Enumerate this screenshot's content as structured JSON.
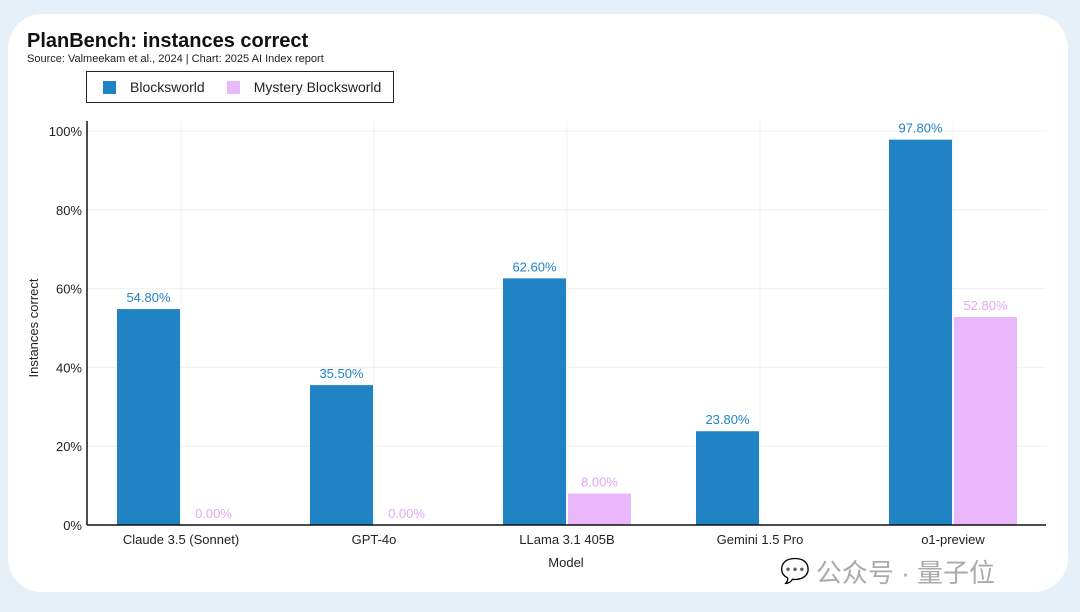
{
  "chart_data": {
    "type": "bar",
    "title": "PlanBench: instances correct",
    "subtitle": "Source: Valmeekam et al., 2024 | Chart: 2025 AI Index report",
    "xlabel": "Model",
    "ylabel": "Instances correct",
    "ylim": [
      0,
      100
    ],
    "yticks": [
      "0%",
      "20%",
      "40%",
      "60%",
      "80%",
      "100%"
    ],
    "categories": [
      "Claude 3.5 (Sonnet)",
      "GPT-4o",
      "LLama 3.1 405B",
      "Gemini 1.5 Pro",
      "o1-preview"
    ],
    "series": [
      {
        "name": "Blocksworld",
        "color": "#1f83c4",
        "values": [
          54.8,
          35.5,
          62.6,
          23.8,
          97.8
        ],
        "labels": [
          "54.80%",
          "35.50%",
          "62.60%",
          "23.80%",
          "97.80%"
        ]
      },
      {
        "name": "Mystery Blocksworld",
        "color": "#e8b8fb",
        "values": [
          0,
          0,
          8.0,
          null,
          52.8
        ],
        "labels": [
          "0.00%",
          "0.00%",
          "8.00%",
          "",
          "52.80%"
        ]
      }
    ],
    "legend_position": "top-left",
    "grid": true
  },
  "watermark": {
    "text": "公众号 · 量子位"
  }
}
